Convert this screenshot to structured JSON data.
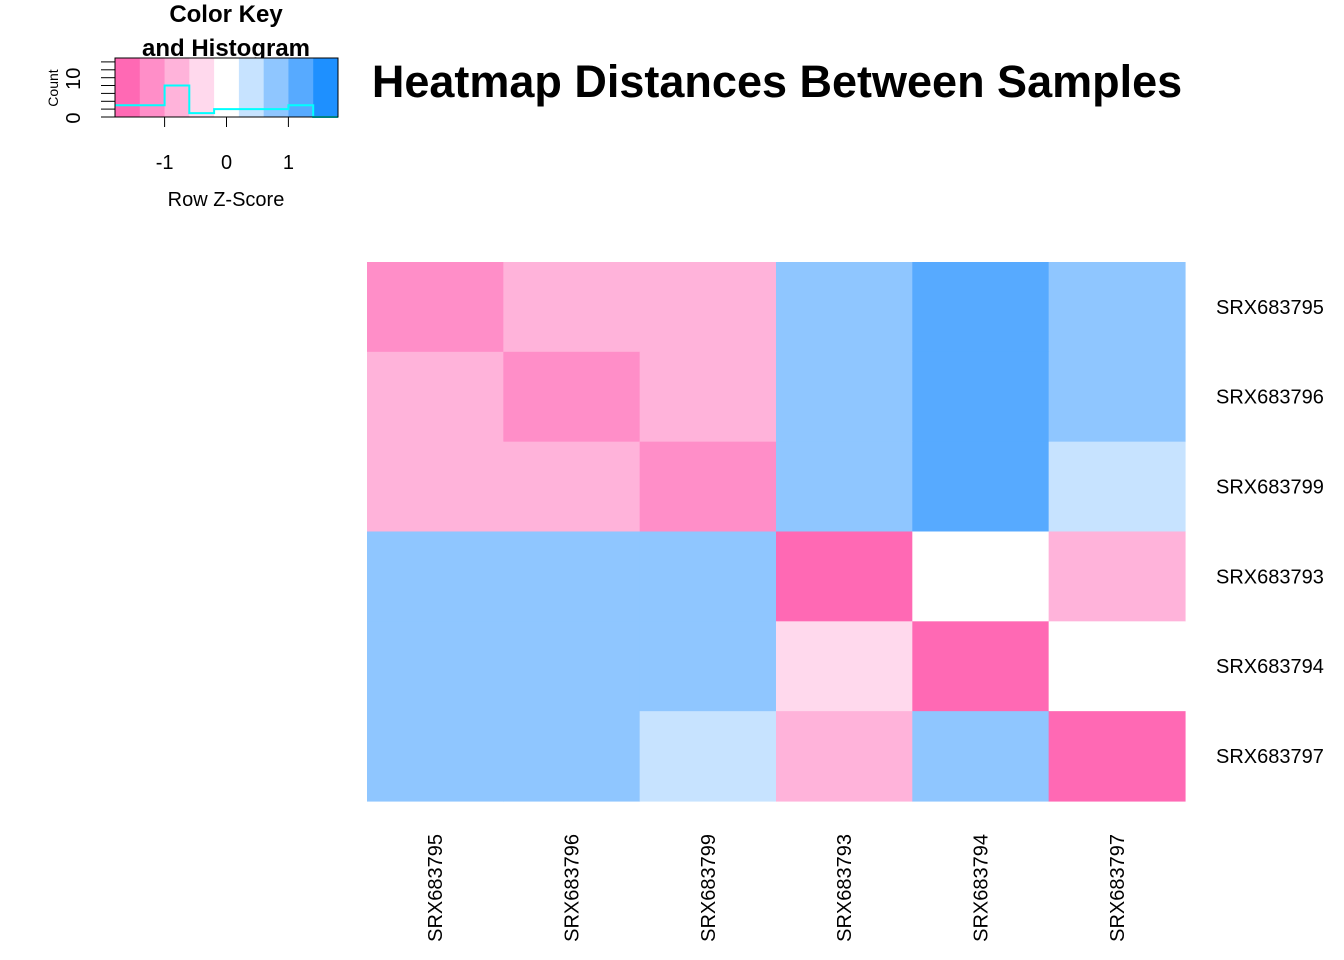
{
  "chart_data": {
    "type": "heatmap",
    "title": "Heatmap Distances Between Samples",
    "rows": [
      "SRX683795",
      "SRX683796",
      "SRX683799",
      "SRX683793",
      "SRX683794",
      "SRX683797"
    ],
    "columns": [
      "SRX683795",
      "SRX683796",
      "SRX683799",
      "SRX683793",
      "SRX683794",
      "SRX683797"
    ],
    "color_bins": [
      "#FF69B4",
      "#FF8EC8",
      "#FFB3DA",
      "#FFD9ED",
      "#FFFFFF",
      "#C7E3FF",
      "#8FC6FF",
      "#57AAFF",
      "#1E90FF"
    ],
    "cell_bins": [
      [
        1,
        2,
        2,
        6,
        7,
        6
      ],
      [
        2,
        1,
        2,
        6,
        7,
        6
      ],
      [
        2,
        2,
        1,
        6,
        7,
        5
      ],
      [
        6,
        6,
        6,
        0,
        4,
        2
      ],
      [
        6,
        6,
        6,
        3,
        0,
        4
      ],
      [
        6,
        6,
        5,
        2,
        6,
        0
      ]
    ],
    "color_key": {
      "title_line1": "Color Key",
      "title_line2": "and Histogram",
      "xlabel": "Row Z-Score",
      "ylabel": "Count",
      "xrange": [
        -1.8,
        1.8
      ],
      "xticks": [
        -1,
        0,
        1
      ],
      "xtick_labels": [
        "-1",
        "0",
        "1"
      ],
      "yrange": [
        0,
        15
      ],
      "yticks": [
        0,
        10
      ],
      "ytick_labels": [
        "0",
        "10"
      ],
      "histogram_color": "#00FFFF",
      "histogram_breaks": [
        -1.8,
        -1.0,
        -0.6,
        -0.2,
        1.0,
        1.4,
        1.8
      ],
      "histogram_counts": [
        3,
        8,
        1,
        2,
        3,
        0
      ]
    }
  }
}
